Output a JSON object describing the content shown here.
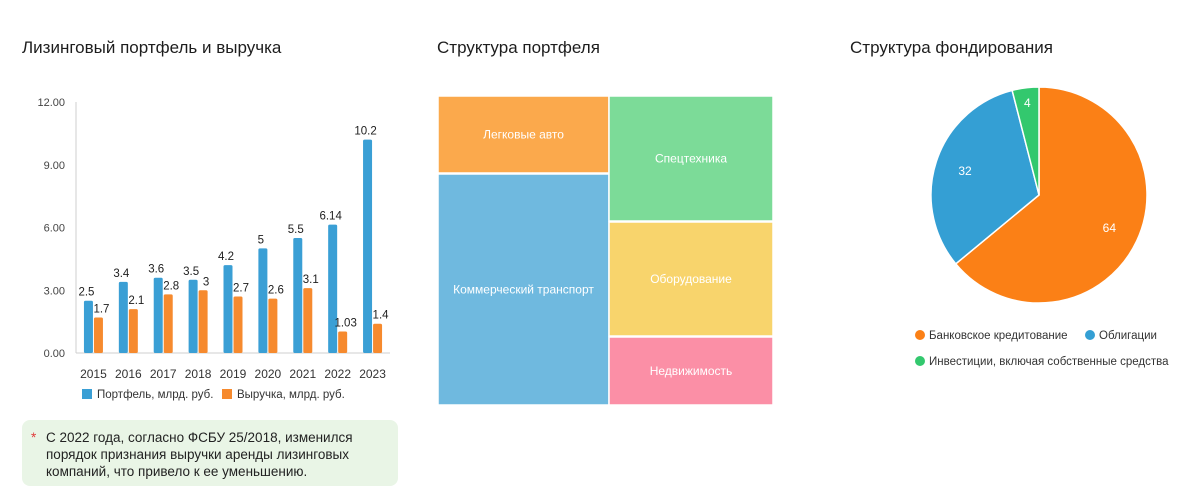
{
  "chart_data": [
    {
      "type": "bar",
      "title": "Лизинговый портфель и выручка",
      "categories": [
        "2015",
        "2016",
        "2017",
        "2018",
        "2019",
        "2020",
        "2021",
        "2022",
        "2023"
      ],
      "series": [
        {
          "name": "Портфель, млрд. руб.",
          "color": "#3a9fd5",
          "values": [
            2.5,
            3.4,
            3.6,
            3.5,
            4.2,
            5,
            5.5,
            6.14,
            10.2
          ],
          "labels": [
            "2.5",
            "3.4",
            "3.6",
            "3.5",
            "4.2",
            "5",
            "5.5",
            "6.14",
            "10.2"
          ]
        },
        {
          "name": "Выручка, млрд. руб.",
          "color": "#f68a2e",
          "values": [
            1.7,
            2.1,
            2.8,
            3,
            2.7,
            2.6,
            3.1,
            1.03,
            1.4
          ],
          "labels": [
            "1.7",
            "2.1",
            "2.8",
            "3",
            "2.7",
            "2.6",
            "3.1",
            "1.03",
            "1.4"
          ]
        }
      ],
      "ylim": [
        0,
        12
      ],
      "yticks": [
        "0.00",
        "3.00",
        "6.00",
        "9.00",
        "12.00"
      ],
      "grid": false,
      "legend": "bottom"
    },
    {
      "type": "treemap",
      "title": "Структура портфеля",
      "items": [
        {
          "name": "Легковые авто",
          "color": "#fba94c"
        },
        {
          "name": "Коммерческий транспорт",
          "color": "#6fb9df"
        },
        {
          "name": "Спецтехника",
          "color": "#7cdb98"
        },
        {
          "name": "Оборудование",
          "color": "#f8d46c"
        },
        {
          "name": "Недвижимость",
          "color": "#fb8fa6"
        }
      ]
    },
    {
      "type": "pie",
      "title": "Структура фондирования",
      "slices": [
        {
          "name": "Банковское кредитование",
          "value": 64,
          "label": "64",
          "color": "#fb8016"
        },
        {
          "name": "Облигации",
          "value": 32,
          "label": "32",
          "color": "#349fd4"
        },
        {
          "name": "Инвестиции, включая собственные средства",
          "value": 4,
          "label": "4",
          "color": "#33c86e"
        }
      ],
      "legend": "bottom"
    }
  ],
  "note": {
    "marker": "*",
    "text": "С 2022 года, согласно ФСБУ 25/2018, изменился порядок признания выручки аренды лизинговых компаний, что привело к ее уменьшению."
  }
}
